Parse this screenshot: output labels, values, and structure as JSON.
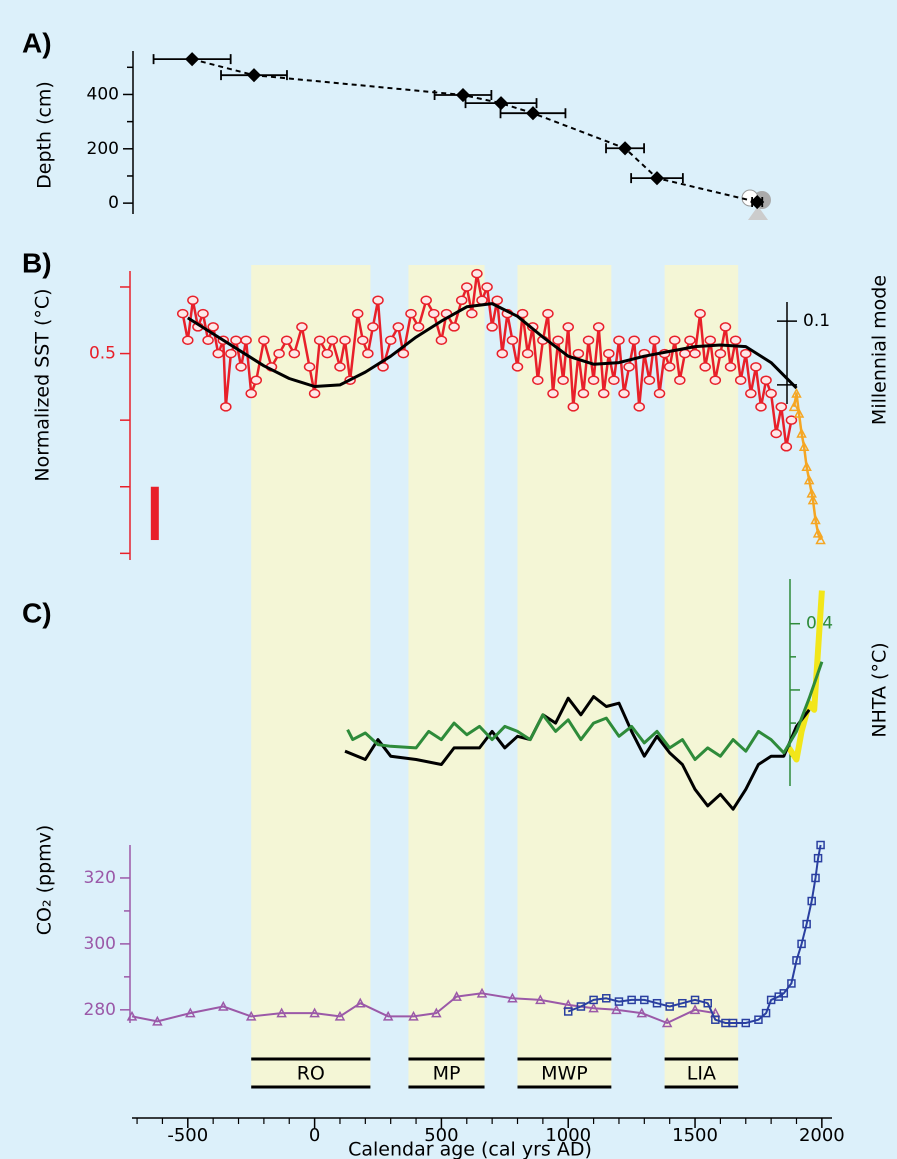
{
  "chart_data": [
    {
      "type": "scatter",
      "title": "A)",
      "ylabel": "Depth (cm)",
      "xlim": [
        -720,
        2040
      ],
      "ylim": [
        -40,
        560
      ],
      "yticks": [
        0,
        200,
        400
      ],
      "yticks_minor": [
        100,
        300,
        500
      ],
      "axis_color": "#000000",
      "series": [
        {
          "color": "#000000",
          "marker": "diamond",
          "line": "dashed",
          "line_width": 2,
          "x": [
            -483,
            -239,
            585,
            735,
            861,
            1224,
            1350,
            1745
          ],
          "values": [
            530,
            471,
            398,
            368,
            331,
            202,
            92,
            4
          ],
          "xerr": [
            152,
            130,
            112,
            140,
            128,
            75,
            102,
            20
          ]
        }
      ]
    },
    {
      "type": "line",
      "title": "B)",
      "ylabel": "Normalized SST (°C)",
      "y2label": "Millennial mode",
      "xlim": [
        -720,
        2040
      ],
      "ylim": [
        -1.05,
        1.12
      ],
      "yticks": [
        {
          "value": 1,
          "label": "1.0"
        },
        0.5,
        {
          "value": 0,
          "label": "0.0"
        },
        {
          "value": -0.5,
          "label": "- 0.5"
        },
        {
          "value": -1,
          "label": "- 1.0"
        }
      ],
      "axis_color": "#e8202a",
      "y2lim": [
        -0.16,
        0.16
      ],
      "y2ticks": [
        0.1,
        {
          "value": -0.1,
          "label": "- 0.1"
        }
      ],
      "y2_axis_color": "#000000",
      "error_bar": {
        "x": -630,
        "low": -0.9,
        "high": -0.5,
        "color": "#e8202a"
      },
      "series": [
        {
          "color": "#e8202a",
          "marker": "circle",
          "line": "solid",
          "line_width": 2.5,
          "x": [
            -520,
            -500,
            -480,
            -460,
            -440,
            -420,
            -400,
            -380,
            -360,
            -350,
            -330,
            -310,
            -290,
            -270,
            -250,
            -230,
            -200,
            -170,
            -140,
            -110,
            -80,
            -50,
            -20,
            0,
            20,
            50,
            70,
            100,
            120,
            140,
            170,
            190,
            210,
            230,
            250,
            270,
            300,
            330,
            350,
            380,
            410,
            440,
            470,
            500,
            520,
            550,
            580,
            600,
            620,
            640,
            660,
            680,
            700,
            720,
            740,
            760,
            780,
            800,
            820,
            840,
            860,
            880,
            900,
            920,
            940,
            960,
            980,
            1000,
            1020,
            1040,
            1060,
            1080,
            1100,
            1120,
            1140,
            1160,
            1180,
            1200,
            1220,
            1240,
            1260,
            1280,
            1300,
            1320,
            1340,
            1360,
            1380,
            1400,
            1420,
            1440,
            1460,
            1480,
            1500,
            1520,
            1540,
            1560,
            1580,
            1600,
            1620,
            1640,
            1660,
            1680,
            1700,
            1720,
            1740,
            1760,
            1780,
            1800,
            1820,
            1840,
            1860,
            1880
          ],
          "values": [
            0.8,
            0.6,
            0.9,
            0.7,
            0.8,
            0.6,
            0.7,
            0.5,
            0.6,
            0.1,
            0.5,
            0.6,
            0.4,
            0.6,
            0.2,
            0.3,
            0.6,
            0.4,
            0.5,
            0.6,
            0.5,
            0.7,
            0.4,
            0.2,
            0.6,
            0.5,
            0.6,
            0.4,
            0.6,
            0.3,
            0.8,
            0.6,
            0.5,
            0.7,
            0.9,
            0.4,
            0.6,
            0.7,
            0.5,
            0.8,
            0.7,
            0.9,
            0.8,
            0.6,
            0.8,
            0.7,
            0.9,
            1.0,
            0.8,
            1.1,
            0.9,
            1.0,
            0.7,
            0.9,
            0.5,
            0.8,
            0.6,
            0.4,
            0.8,
            0.5,
            0.7,
            0.3,
            0.6,
            0.8,
            0.2,
            0.6,
            0.3,
            0.7,
            0.1,
            0.5,
            0.2,
            0.6,
            0.3,
            0.7,
            0.2,
            0.5,
            0.3,
            0.6,
            0.2,
            0.4,
            0.6,
            0.1,
            0.5,
            0.3,
            0.6,
            0.2,
            0.5,
            0.4,
            0.6,
            0.3,
            0.5,
            0.6,
            0.5,
            0.8,
            0.4,
            0.6,
            0.3,
            0.5,
            0.7,
            0.4,
            0.6,
            0.3,
            0.5,
            0.2,
            0.4,
            0.1,
            0.3,
            0.2,
            -0.1,
            0.1,
            -0.2,
            0.0
          ]
        },
        {
          "color": "#f5a623",
          "marker": "triangle",
          "line": "solid",
          "line_width": 2.5,
          "x": [
            1890,
            1900,
            1910,
            1920,
            1930,
            1940,
            1950,
            1960,
            1965,
            1975,
            1985,
            1995
          ],
          "values": [
            0.1,
            0.2,
            0.05,
            -0.1,
            -0.2,
            -0.35,
            -0.45,
            -0.55,
            -0.6,
            -0.75,
            -0.85,
            -0.9
          ]
        },
        {
          "color": "#000000",
          "line": "solid",
          "line_width": 3,
          "axis": "y2",
          "x": [
            -500,
            -400,
            -300,
            -200,
            -100,
            0,
            100,
            200,
            300,
            400,
            500,
            600,
            700,
            800,
            900,
            1000,
            1100,
            1200,
            1300,
            1400,
            1500,
            1600,
            1700,
            1800,
            1900
          ],
          "values": [
            0.11,
            0.06,
            0.01,
            -0.04,
            -0.08,
            -0.105,
            -0.1,
            -0.06,
            -0.01,
            0.05,
            0.1,
            0.145,
            0.155,
            0.115,
            0.05,
            -0.01,
            -0.035,
            -0.03,
            -0.01,
            0.005,
            0.02,
            0.025,
            0.02,
            -0.03,
            -0.11
          ]
        }
      ]
    },
    {
      "type": "line",
      "title": "C)",
      "y2label": "NHTA (°C)",
      "xlim": [
        -720,
        2040
      ],
      "y2lim": [
        -0.58,
        0.67
      ],
      "y2ticks": [
        0.4,
        {
          "value": 0,
          "label": "0.0"
        },
        {
          "value": -0.4,
          "label": "- 0.4"
        }
      ],
      "y2ticks_minor": [
        0.2,
        -0.2
      ],
      "y2_axis_color": "#2e8b3a",
      "series": [
        {
          "color": "#f2e61a",
          "line": "solid",
          "line_width": 6,
          "axis": "y2",
          "x": [
            1870,
            1900,
            1920,
            1950,
            1970,
            2000
          ],
          "values": [
            -0.35,
            -0.42,
            -0.25,
            -0.08,
            -0.12,
            0.6
          ]
        },
        {
          "color": "#000000",
          "line": "solid",
          "line_width": 3,
          "axis": "y2",
          "x": [
            120,
            200,
            250,
            300,
            400,
            500,
            550,
            650,
            700,
            750,
            800,
            850,
            900,
            950,
            1000,
            1050,
            1100,
            1150,
            1200,
            1250,
            1300,
            1350,
            1400,
            1450,
            1500,
            1550,
            1600,
            1650,
            1700,
            1750,
            1800,
            1850,
            1900,
            1950
          ],
          "values": [
            -0.37,
            -0.42,
            -0.3,
            -0.4,
            -0.42,
            -0.45,
            -0.35,
            -0.35,
            -0.25,
            -0.35,
            -0.28,
            -0.3,
            -0.15,
            -0.2,
            -0.05,
            -0.15,
            -0.04,
            -0.1,
            -0.08,
            -0.25,
            -0.4,
            -0.28,
            -0.38,
            -0.45,
            -0.6,
            -0.7,
            -0.63,
            -0.72,
            -0.6,
            -0.45,
            -0.4,
            -0.4,
            -0.22,
            -0.12
          ]
        },
        {
          "color": "#2e8b3a",
          "line": "solid",
          "line_width": 3,
          "axis": "y2",
          "x": [
            130,
            150,
            200,
            250,
            300,
            400,
            450,
            500,
            550,
            600,
            650,
            700,
            750,
            800,
            850,
            900,
            950,
            1000,
            1050,
            1100,
            1150,
            1200,
            1250,
            1300,
            1350,
            1400,
            1450,
            1500,
            1550,
            1600,
            1650,
            1700,
            1750,
            1800,
            1850,
            1900,
            1950,
            2000
          ],
          "values": [
            -0.24,
            -0.3,
            -0.26,
            -0.33,
            -0.34,
            -0.35,
            -0.25,
            -0.3,
            -0.2,
            -0.27,
            -0.22,
            -0.3,
            -0.22,
            -0.25,
            -0.3,
            -0.15,
            -0.25,
            -0.18,
            -0.3,
            -0.2,
            -0.17,
            -0.28,
            -0.22,
            -0.32,
            -0.25,
            -0.35,
            -0.3,
            -0.42,
            -0.35,
            -0.4,
            -0.3,
            -0.37,
            -0.25,
            -0.3,
            -0.38,
            -0.25,
            -0.05,
            0.17
          ]
        }
      ]
    },
    {
      "type": "line",
      "ylabel": "CO₂ (ppmv)",
      "xlabel": "Calendar age (cal yrs AD)",
      "xlim": [
        -720,
        2040
      ],
      "ylim": [
        276,
        330
      ],
      "yticks": [
        280,
        300,
        320
      ],
      "yticks_minor": [
        290,
        310
      ],
      "axis_color": "#9b59a8",
      "xticks": [
        -500,
        0,
        500,
        1000,
        1500,
        2000
      ],
      "xticks_minor": [
        -700,
        -600,
        -400,
        -300,
        -200,
        -100,
        100,
        200,
        300,
        400,
        600,
        700,
        800,
        900,
        1100,
        1200,
        1300,
        1400,
        1600,
        1700,
        1800,
        1900
      ],
      "band_color": "#f4f6d6",
      "periods": [
        {
          "label": "RO",
          "start": -250,
          "end": 220
        },
        {
          "label": "MP",
          "start": 370,
          "end": 670
        },
        {
          "label": "MWP",
          "start": 800,
          "end": 1170
        },
        {
          "label": "LIA",
          "start": 1380,
          "end": 1670
        }
      ],
      "series": [
        {
          "color": "#9b59a8",
          "marker": "triangle",
          "line": "solid",
          "line_width": 2,
          "x": [
            -720,
            -620,
            -490,
            -360,
            -250,
            -130,
            0,
            100,
            180,
            290,
            390,
            480,
            560,
            660,
            780,
            890,
            1000,
            1100,
            1190,
            1290,
            1390,
            1500,
            1580
          ],
          "values": [
            278,
            276.5,
            279,
            281,
            278,
            279,
            279,
            278,
            282,
            278,
            278,
            279,
            284,
            285,
            283.5,
            283,
            281.5,
            280.5,
            280,
            279,
            276,
            280,
            279
          ]
        },
        {
          "color": "#2a3fa0",
          "marker": "square",
          "line": "solid",
          "line_width": 2,
          "x": [
            1000,
            1050,
            1100,
            1150,
            1200,
            1250,
            1300,
            1350,
            1400,
            1450,
            1500,
            1550,
            1580,
            1620,
            1650,
            1700,
            1750,
            1780,
            1800,
            1830,
            1850,
            1880,
            1900,
            1920,
            1940,
            1960,
            1975,
            1985,
            1995
          ],
          "values": [
            279.5,
            281,
            283,
            283.5,
            282.5,
            283,
            283,
            282,
            281,
            282,
            283,
            282,
            277,
            276,
            276,
            276,
            277,
            279,
            283,
            284,
            285,
            288,
            295,
            300,
            306,
            313,
            320,
            326,
            330
          ]
        }
      ]
    }
  ]
}
